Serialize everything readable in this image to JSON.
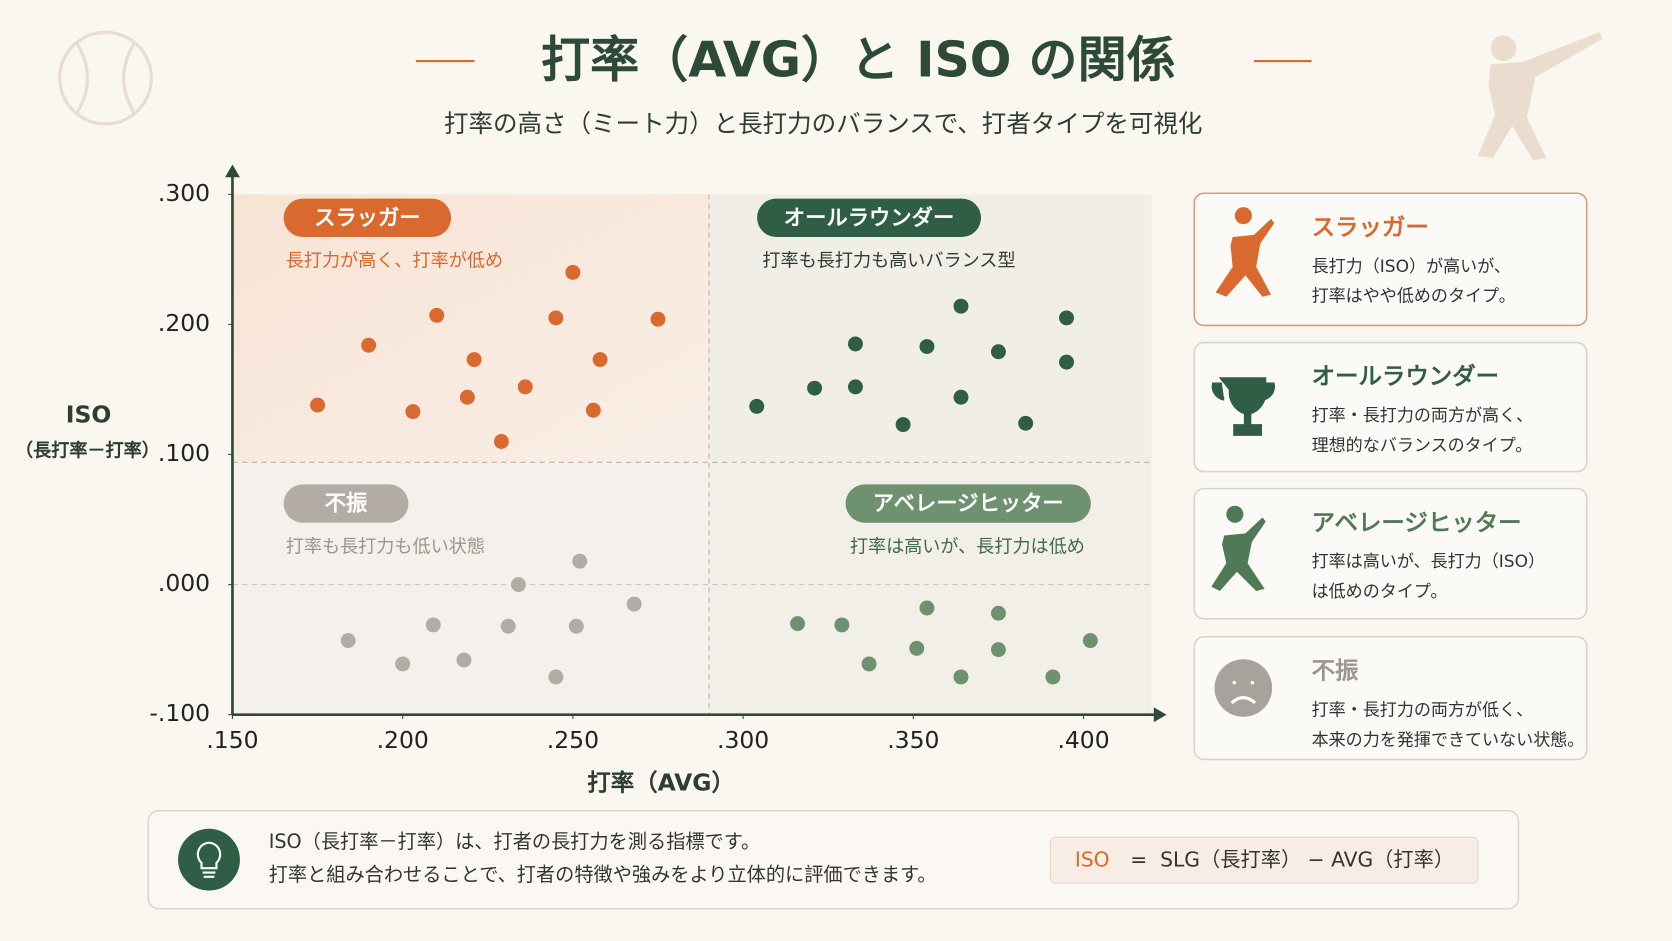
{
  "title": "打率（AVG）と ISO の関係",
  "subtitle": "打率の高さ（ミート力）と長打力のバランスで、打者タイプを可視化",
  "chart_data": {
    "type": "scatter",
    "x_axis_label": "打率（AVG）",
    "y_axis_label": "ISO",
    "y_axis_sublabel": "（長打率－打率）",
    "xlim": [
      0.15,
      0.42
    ],
    "ylim": [
      -0.1,
      0.3
    ],
    "xticks": [
      {
        "value": 0.15,
        "label": ".150"
      },
      {
        "value": 0.2,
        "label": ".200"
      },
      {
        "value": 0.25,
        "label": ".250"
      },
      {
        "value": 0.3,
        "label": ".300"
      },
      {
        "value": 0.35,
        "label": ".350"
      },
      {
        "value": 0.4,
        "label": ".400"
      }
    ],
    "yticks": [
      {
        "value": -0.1,
        "label": "-.100"
      },
      {
        "value": 0,
        "label": ".000"
      },
      {
        "value": 0.1,
        "label": ".100"
      },
      {
        "value": 0.2,
        "label": ".200"
      },
      {
        "value": 0.3,
        "label": ".300"
      }
    ],
    "quadrant_split": {
      "x": 0.29,
      "y": 0.094
    },
    "series": [
      {
        "name": "スラッガー",
        "description": "長打力が高く、打率が低め",
        "color": "#d9692e",
        "x": [
          0.175,
          0.19,
          0.21,
          0.221,
          0.203,
          0.219,
          0.236,
          0.229,
          0.25,
          0.245,
          0.258,
          0.256,
          0.275
        ],
        "values": [
          0.138,
          0.184,
          0.207,
          0.173,
          0.133,
          0.144,
          0.152,
          0.11,
          0.24,
          0.205,
          0.173,
          0.134,
          0.204
        ]
      },
      {
        "name": "オールラウンダー",
        "description": "打率も長打力も高いバランス型",
        "color": "#2f5d45",
        "x": [
          0.304,
          0.321,
          0.333,
          0.333,
          0.347,
          0.354,
          0.364,
          0.364,
          0.375,
          0.383,
          0.395,
          0.395
        ],
        "values": [
          0.137,
          0.151,
          0.185,
          0.152,
          0.123,
          0.183,
          0.214,
          0.144,
          0.179,
          0.124,
          0.205,
          0.171
        ]
      },
      {
        "name": "不振",
        "description": "打率も長打力も低い状態",
        "color": "#b3aca5",
        "x": [
          0.184,
          0.2,
          0.209,
          0.218,
          0.231,
          0.234,
          0.252,
          0.251,
          0.245,
          0.268
        ],
        "values": [
          -0.043,
          -0.061,
          -0.031,
          -0.058,
          -0.032,
          0.0,
          0.018,
          -0.032,
          -0.071,
          -0.015
        ]
      },
      {
        "name": "アベレージヒッター",
        "description": "打率は高いが、長打力は低め",
        "color": "#6e9170",
        "x": [
          0.316,
          0.329,
          0.337,
          0.351,
          0.354,
          0.364,
          0.375,
          0.375,
          0.391,
          0.402
        ],
        "values": [
          -0.03,
          -0.031,
          -0.061,
          -0.049,
          -0.018,
          -0.071,
          -0.022,
          -0.05,
          -0.071,
          -0.043
        ]
      }
    ]
  },
  "cards": [
    {
      "title": "スラッガー",
      "lines": [
        "長打力（ISO）が高いが、",
        "打率はやや低めのタイプ。"
      ]
    },
    {
      "title": "オールラウンダー",
      "lines": [
        "打率・長打力の両方が高く、",
        "理想的なバランスのタイプ。"
      ]
    },
    {
      "title": "アベレージヒッター",
      "lines": [
        "打率は高いが、長打力（ISO）",
        "は低めのタイプ。"
      ]
    },
    {
      "title": "不振",
      "lines": [
        "打率・長打力の両方が低く、",
        "本来の力を発揮できていない状態。"
      ]
    }
  ],
  "note": {
    "lines": [
      "ISO（長打率－打率）は、打者の長打力を測る指標です。",
      "打率と組み合わせることで、打者の特徴や強みをより立体的に評価できます。"
    ],
    "formula": [
      "ISO",
      "=",
      "SLG（長打率） − AVG（打率）"
    ]
  }
}
